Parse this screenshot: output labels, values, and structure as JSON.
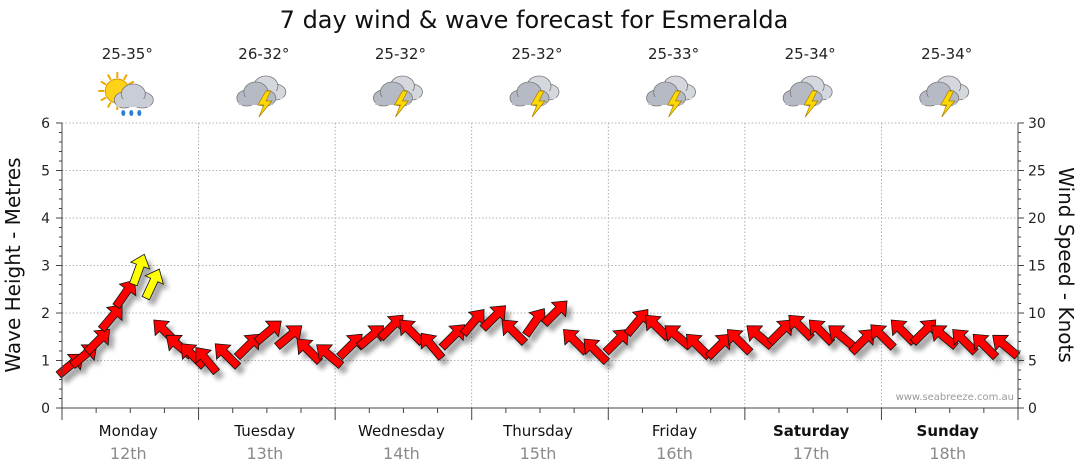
{
  "chart_data": {
    "type": "line",
    "title": "7 day wind & wave forecast for Esmeralda",
    "ylabel_left": "Wave Height - Metres",
    "ylabel_right": "Wind Speed - Knots",
    "ylim_left": [
      0,
      6
    ],
    "ylim_right": [
      0,
      30
    ],
    "yticks_left": [
      "0",
      "1",
      "2",
      "3",
      "4",
      "5",
      "6"
    ],
    "yticks_right": [
      "0",
      "5",
      "10",
      "15",
      "20",
      "25",
      "30"
    ],
    "watermark": "www.seabreeze.com.au",
    "days": [
      {
        "name": "Monday",
        "date": "12th",
        "temp": "25-35°",
        "icon": "sun-cloud-rain-icon",
        "bold": false
      },
      {
        "name": "Tuesday",
        "date": "13th",
        "temp": "26-32°",
        "icon": "storm-cloud-icon",
        "bold": false
      },
      {
        "name": "Wednesday",
        "date": "14th",
        "temp": "25-32°",
        "icon": "storm-cloud-icon",
        "bold": false
      },
      {
        "name": "Thursday",
        "date": "15th",
        "temp": "25-32°",
        "icon": "storm-cloud-icon",
        "bold": false
      },
      {
        "name": "Friday",
        "date": "16th",
        "temp": "25-33°",
        "icon": "storm-cloud-icon",
        "bold": false
      },
      {
        "name": "Saturday",
        "date": "17th",
        "temp": "25-34°",
        "icon": "storm-cloud-icon",
        "bold": true
      },
      {
        "name": "Sunday",
        "date": "18th",
        "temp": "25-34°",
        "icon": "storm-cloud-icon",
        "bold": true
      }
    ],
    "wind_series": {
      "name": "Wind Speed",
      "units": "knots",
      "t_days": [
        0.0,
        0.1,
        0.2,
        0.3,
        0.4,
        0.5,
        0.6,
        0.7,
        0.8,
        0.9,
        1.0,
        1.15,
        1.3,
        1.45,
        1.6,
        1.75,
        1.9,
        2.05,
        2.2,
        2.35,
        2.5,
        2.65,
        2.8,
        2.95,
        3.1,
        3.25,
        3.4,
        3.55,
        3.7,
        3.85,
        4.0,
        4.15,
        4.3,
        4.45,
        4.6,
        4.75,
        4.9,
        5.05,
        5.2,
        5.35,
        5.5,
        5.65,
        5.8,
        5.95,
        6.1,
        6.25,
        6.4,
        6.55,
        6.7,
        6.85
      ],
      "speed": [
        4.5,
        5.5,
        7.0,
        9.5,
        12.0,
        14.5,
        13.0,
        8.0,
        6.5,
        5.5,
        5.0,
        5.5,
        6.5,
        8.0,
        7.5,
        6.0,
        5.5,
        6.5,
        7.5,
        8.5,
        8.0,
        6.5,
        7.5,
        9.0,
        9.5,
        8.0,
        9.0,
        10.0,
        7.0,
        6.0,
        7.0,
        9.0,
        8.5,
        7.5,
        6.5,
        6.5,
        7.0,
        7.5,
        8.0,
        8.5,
        8.0,
        7.5,
        7.0,
        7.5,
        8.0,
        8.0,
        7.5,
        7.0,
        6.5,
        6.5
      ],
      "direction_deg": [
        230,
        230,
        225,
        220,
        215,
        200,
        205,
        135,
        130,
        135,
        140,
        135,
        225,
        230,
        230,
        135,
        130,
        225,
        230,
        225,
        135,
        140,
        225,
        220,
        225,
        135,
        215,
        225,
        135,
        135,
        225,
        220,
        135,
        130,
        135,
        225,
        135,
        130,
        225,
        135,
        135,
        130,
        225,
        135,
        135,
        225,
        130,
        135,
        135,
        130
      ],
      "strong_color": "#ffff00",
      "normal_color": "#ff0000",
      "strong_threshold_knots": 13
    },
    "wave_series": {
      "name": "Wave Height",
      "units": "metres",
      "t_days": [],
      "values": []
    },
    "colors": {
      "arrow_stroke": "#111111",
      "shadow": "#000000"
    }
  }
}
